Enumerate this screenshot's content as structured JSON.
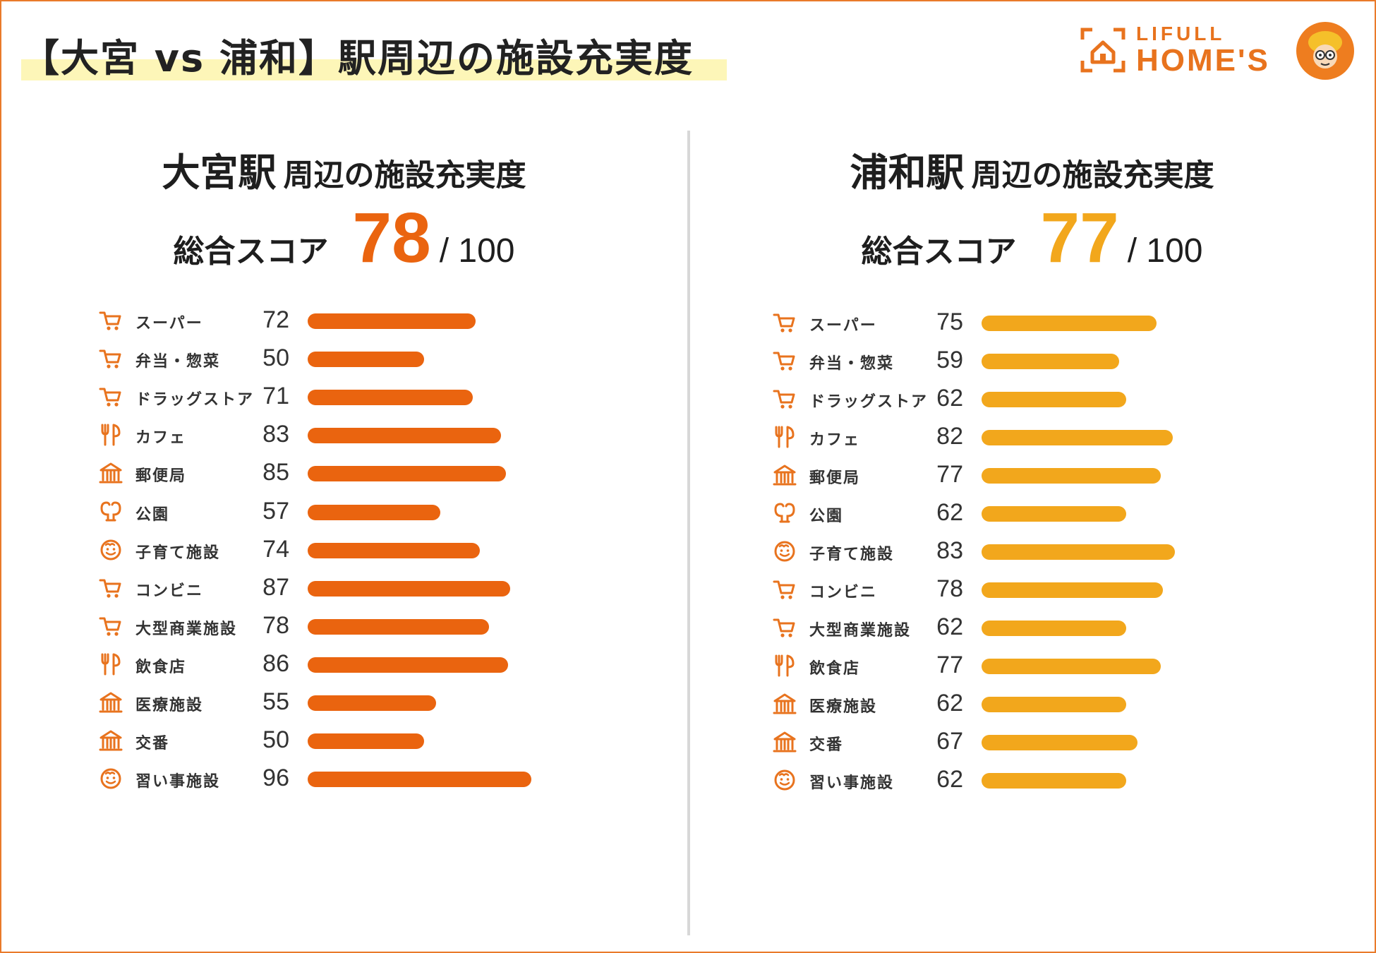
{
  "header": {
    "title": "【大宮 vs 浦和】駅周辺の施設充実度",
    "logo_line1": "LIFULL",
    "logo_line2": "HOME'S"
  },
  "colors": {
    "omiya": "#ea640f",
    "urawa": "#f2a71c",
    "icon": "#e8731e"
  },
  "chart_data": [
    {
      "type": "bar",
      "title": "大宮駅 周辺の施設充実度",
      "station": "大宮駅",
      "subtitle": "周辺の施設充実度",
      "score_label": "総合スコア",
      "score": "78",
      "score_max": "/ 100",
      "xlim": [
        0,
        100
      ],
      "categories": [
        "スーパー",
        "弁当・惣菜",
        "ドラッグストア",
        "カフェ",
        "郵便局",
        "公園",
        "子育て施設",
        "コンビニ",
        "大型商業施設",
        "飲食店",
        "医療施設",
        "交番",
        "習い事施設"
      ],
      "icons": [
        "cart-icon",
        "cart-icon",
        "cart-icon",
        "fork-knife-icon",
        "building-icon",
        "tree-icon",
        "face-icon",
        "cart-icon",
        "cart-icon",
        "fork-knife-icon",
        "building-icon",
        "building-icon",
        "face-icon"
      ],
      "values": [
        72,
        50,
        71,
        83,
        85,
        57,
        74,
        87,
        78,
        86,
        55,
        50,
        96
      ]
    },
    {
      "type": "bar",
      "title": "浦和駅 周辺の施設充実度",
      "station": "浦和駅",
      "subtitle": "周辺の施設充実度",
      "score_label": "総合スコア",
      "score": "77",
      "score_max": "/ 100",
      "xlim": [
        0,
        100
      ],
      "categories": [
        "スーパー",
        "弁当・惣菜",
        "ドラッグストア",
        "カフェ",
        "郵便局",
        "公園",
        "子育て施設",
        "コンビニ",
        "大型商業施設",
        "飲食店",
        "医療施設",
        "交番",
        "習い事施設"
      ],
      "icons": [
        "cart-icon",
        "cart-icon",
        "cart-icon",
        "fork-knife-icon",
        "building-icon",
        "tree-icon",
        "face-icon",
        "cart-icon",
        "cart-icon",
        "fork-knife-icon",
        "building-icon",
        "building-icon",
        "face-icon"
      ],
      "values": [
        75,
        59,
        62,
        82,
        77,
        62,
        83,
        78,
        62,
        77,
        62,
        67,
        62
      ]
    }
  ]
}
